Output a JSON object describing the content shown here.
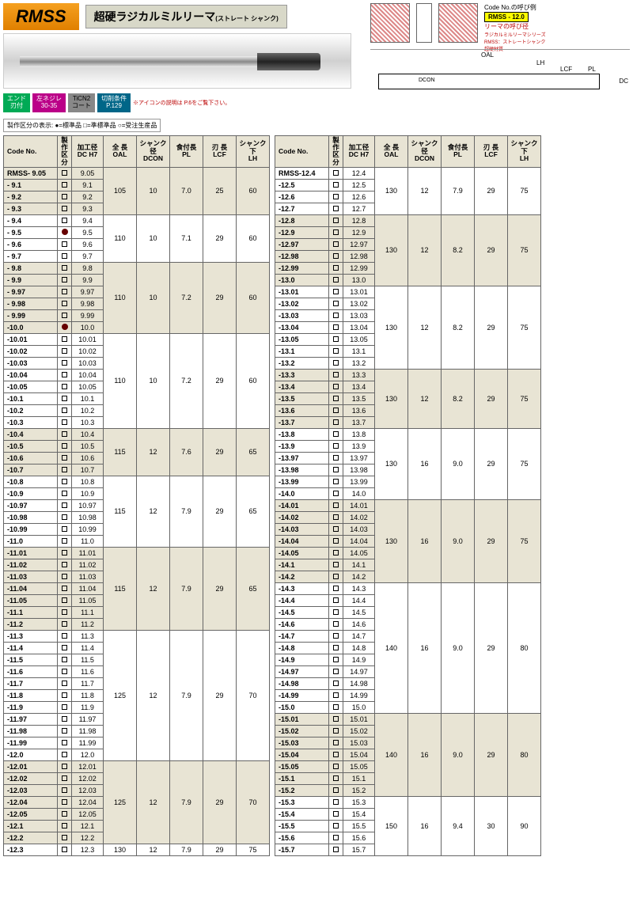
{
  "header": {
    "badge": "RMSS",
    "title": "超硬ラジカルミルリーマ",
    "subtitle": "(ストレート\nシャンク)",
    "badges": [
      {
        "line1": "エンド",
        "line2": "刃付",
        "cls": "b1"
      },
      {
        "line1": "左ネジレ",
        "line2": "30-35",
        "cls": "b2"
      },
      {
        "line1": "TiCN2",
        "line2": "コート",
        "cls": "b3"
      },
      {
        "line1": "切削条件",
        "line2": "P.129",
        "cls": "b4"
      }
    ],
    "badge_note": "※アイコンの説明は\nP.6をご覧下さい。",
    "code_example_label": "Code No.の呼び例",
    "code_example": "RMSS - 12.0",
    "code_example_note": "リーマの呼び径",
    "code_example_desc": "ラジカルミルリーマシリーズ\nRMSS：ストレートシャンク\n超硬材質",
    "dim_oal": "OAL",
    "dim_lh": "LH",
    "dim_lcf": "LCF",
    "dim_pl": "PL",
    "dim_dcon": "DCON",
    "dim_dc": "DC",
    "note": "製作区分の表示: ●=標準品 □=準標準品 ○=受注生産品"
  },
  "columns": [
    "Code No.",
    "製作\n区分",
    "加工径\nDC H7",
    "全 長\nOAL",
    "シャンク径\nDCON",
    "食付長\nPL",
    "刃 長\nLCF",
    "シャンク下\nLH"
  ],
  "left_groups": [
    {
      "rows": [
        [
          "RMSS- 9.05",
          "sq",
          "9.05"
        ],
        [
          "- 9.1",
          "sq",
          "9.1"
        ],
        [
          "- 9.2",
          "sq",
          "9.2"
        ],
        [
          "- 9.3",
          "sq",
          "9.3"
        ]
      ],
      "oal": "105",
      "dcon": "10",
      "pl": "7.0",
      "lcf": "25",
      "lh": "60",
      "alt": 1
    },
    {
      "rows": [
        [
          "- 9.4",
          "sq",
          "9.4"
        ],
        [
          "- 9.5",
          "dot",
          "9.5"
        ],
        [
          "- 9.6",
          "sq",
          "9.6"
        ],
        [
          "- 9.7",
          "sq",
          "9.7"
        ]
      ],
      "oal": "110",
      "dcon": "10",
      "pl": "7.1",
      "lcf": "29",
      "lh": "60",
      "alt": 0
    },
    {
      "rows": [
        [
          "- 9.8",
          "sq",
          "9.8"
        ],
        [
          "- 9.9",
          "sq",
          "9.9"
        ],
        [
          "- 9.97",
          "sq",
          "9.97"
        ],
        [
          "- 9.98",
          "sq",
          "9.98"
        ],
        [
          "- 9.99",
          "sq",
          "9.99"
        ],
        [
          "-10.0",
          "dot",
          "10.0"
        ]
      ],
      "oal": "110",
      "dcon": "10",
      "pl": "7.2",
      "lcf": "29",
      "lh": "60",
      "alt": 1
    },
    {
      "rows": [
        [
          "-10.01",
          "sq",
          "10.01"
        ],
        [
          "-10.02",
          "sq",
          "10.02"
        ],
        [
          "-10.03",
          "sq",
          "10.03"
        ],
        [
          "-10.04",
          "sq",
          "10.04"
        ],
        [
          "-10.05",
          "sq",
          "10.05"
        ],
        [
          "-10.1",
          "sq",
          "10.1"
        ],
        [
          "-10.2",
          "sq",
          "10.2"
        ],
        [
          "-10.3",
          "sq",
          "10.3"
        ]
      ],
      "oal": "110",
      "dcon": "10",
      "pl": "7.2",
      "lcf": "29",
      "lh": "60",
      "alt": 0
    },
    {
      "rows": [
        [
          "-10.4",
          "sq",
          "10.4"
        ],
        [
          "-10.5",
          "sq",
          "10.5"
        ],
        [
          "-10.6",
          "sq",
          "10.6"
        ],
        [
          "-10.7",
          "sq",
          "10.7"
        ]
      ],
      "oal": "115",
      "dcon": "12",
      "pl": "7.6",
      "lcf": "29",
      "lh": "65",
      "alt": 1
    },
    {
      "rows": [
        [
          "-10.8",
          "sq",
          "10.8"
        ],
        [
          "-10.9",
          "sq",
          "10.9"
        ],
        [
          "-10.97",
          "sq",
          "10.97"
        ],
        [
          "-10.98",
          "sq",
          "10.98"
        ],
        [
          "-10.99",
          "sq",
          "10.99"
        ],
        [
          "-11.0",
          "sq",
          "11.0"
        ]
      ],
      "oal": "115",
      "dcon": "12",
      "pl": "7.9",
      "lcf": "29",
      "lh": "65",
      "alt": 0
    },
    {
      "rows": [
        [
          "-11.01",
          "sq",
          "11.01"
        ],
        [
          "-11.02",
          "sq",
          "11.02"
        ],
        [
          "-11.03",
          "sq",
          "11.03"
        ],
        [
          "-11.04",
          "sq",
          "11.04"
        ],
        [
          "-11.05",
          "sq",
          "11.05"
        ],
        [
          "-11.1",
          "sq",
          "11.1"
        ],
        [
          "-11.2",
          "sq",
          "11.2"
        ]
      ],
      "oal": "115",
      "dcon": "12",
      "pl": "7.9",
      "lcf": "29",
      "lh": "65",
      "alt": 1
    },
    {
      "rows": [
        [
          "-11.3",
          "sq",
          "11.3"
        ],
        [
          "-11.4",
          "sq",
          "11.4"
        ],
        [
          "-11.5",
          "sq",
          "11.5"
        ],
        [
          "-11.6",
          "sq",
          "11.6"
        ],
        [
          "-11.7",
          "sq",
          "11.7"
        ],
        [
          "-11.8",
          "sq",
          "11.8"
        ],
        [
          "-11.9",
          "sq",
          "11.9"
        ],
        [
          "-11.97",
          "sq",
          "11.97"
        ],
        [
          "-11.98",
          "sq",
          "11.98"
        ],
        [
          "-11.99",
          "sq",
          "11.99"
        ],
        [
          "-12.0",
          "sq",
          "12.0"
        ]
      ],
      "oal": "125",
      "dcon": "12",
      "pl": "7.9",
      "lcf": "29",
      "lh": "70",
      "alt": 0
    },
    {
      "rows": [
        [
          "-12.01",
          "sq",
          "12.01"
        ],
        [
          "-12.02",
          "sq",
          "12.02"
        ],
        [
          "-12.03",
          "sq",
          "12.03"
        ],
        [
          "-12.04",
          "sq",
          "12.04"
        ],
        [
          "-12.05",
          "sq",
          "12.05"
        ],
        [
          "-12.1",
          "sq",
          "12.1"
        ],
        [
          "-12.2",
          "sq",
          "12.2"
        ]
      ],
      "oal": "125",
      "dcon": "12",
      "pl": "7.9",
      "lcf": "29",
      "lh": "70",
      "alt": 1
    },
    {
      "rows": [
        [
          "-12.3",
          "sq",
          "12.3"
        ]
      ],
      "oal": "130",
      "dcon": "12",
      "pl": "7.9",
      "lcf": "29",
      "lh": "75",
      "alt": 0
    }
  ],
  "right_groups": [
    {
      "rows": [
        [
          "RMSS-12.4",
          "sq",
          "12.4"
        ],
        [
          "-12.5",
          "sq",
          "12.5"
        ],
        [
          "-12.6",
          "sq",
          "12.6"
        ],
        [
          "-12.7",
          "sq",
          "12.7"
        ]
      ],
      "oal": "130",
      "dcon": "12",
      "pl": "7.9",
      "lcf": "29",
      "lh": "75",
      "alt": 0
    },
    {
      "rows": [
        [
          "-12.8",
          "sq",
          "12.8"
        ],
        [
          "-12.9",
          "sq",
          "12.9"
        ],
        [
          "-12.97",
          "sq",
          "12.97"
        ],
        [
          "-12.98",
          "sq",
          "12.98"
        ],
        [
          "-12.99",
          "sq",
          "12.99"
        ],
        [
          "-13.0",
          "sq",
          "13.0"
        ]
      ],
      "oal": "130",
      "dcon": "12",
      "pl": "8.2",
      "lcf": "29",
      "lh": "75",
      "alt": 1
    },
    {
      "rows": [
        [
          "-13.01",
          "sq",
          "13.01"
        ],
        [
          "-13.02",
          "sq",
          "13.02"
        ],
        [
          "-13.03",
          "sq",
          "13.03"
        ],
        [
          "-13.04",
          "sq",
          "13.04"
        ],
        [
          "-13.05",
          "sq",
          "13.05"
        ],
        [
          "-13.1",
          "sq",
          "13.1"
        ],
        [
          "-13.2",
          "sq",
          "13.2"
        ]
      ],
      "oal": "130",
      "dcon": "12",
      "pl": "8.2",
      "lcf": "29",
      "lh": "75",
      "alt": 0
    },
    {
      "rows": [
        [
          "-13.3",
          "sq",
          "13.3"
        ],
        [
          "-13.4",
          "sq",
          "13.4"
        ],
        [
          "-13.5",
          "sq",
          "13.5"
        ],
        [
          "-13.6",
          "sq",
          "13.6"
        ],
        [
          "-13.7",
          "sq",
          "13.7"
        ]
      ],
      "oal": "130",
      "dcon": "12",
      "pl": "8.2",
      "lcf": "29",
      "lh": "75",
      "alt": 1
    },
    {
      "rows": [
        [
          "-13.8",
          "sq",
          "13.8"
        ],
        [
          "-13.9",
          "sq",
          "13.9"
        ],
        [
          "-13.97",
          "sq",
          "13.97"
        ],
        [
          "-13.98",
          "sq",
          "13.98"
        ],
        [
          "-13.99",
          "sq",
          "13.99"
        ],
        [
          "-14.0",
          "sq",
          "14.0"
        ]
      ],
      "oal": "130",
      "dcon": "16",
      "pl": "9.0",
      "lcf": "29",
      "lh": "75",
      "alt": 0
    },
    {
      "rows": [
        [
          "-14.01",
          "sq",
          "14.01"
        ],
        [
          "-14.02",
          "sq",
          "14.02"
        ],
        [
          "-14.03",
          "sq",
          "14.03"
        ],
        [
          "-14.04",
          "sq",
          "14.04"
        ],
        [
          "-14.05",
          "sq",
          "14.05"
        ],
        [
          "-14.1",
          "sq",
          "14.1"
        ],
        [
          "-14.2",
          "sq",
          "14.2"
        ]
      ],
      "oal": "130",
      "dcon": "16",
      "pl": "9.0",
      "lcf": "29",
      "lh": "75",
      "alt": 1
    },
    {
      "rows": [
        [
          "-14.3",
          "sq",
          "14.3"
        ],
        [
          "-14.4",
          "sq",
          "14.4"
        ],
        [
          "-14.5",
          "sq",
          "14.5"
        ],
        [
          "-14.6",
          "sq",
          "14.6"
        ],
        [
          "-14.7",
          "sq",
          "14.7"
        ],
        [
          "-14.8",
          "sq",
          "14.8"
        ],
        [
          "-14.9",
          "sq",
          "14.9"
        ],
        [
          "-14.97",
          "sq",
          "14.97"
        ],
        [
          "-14.98",
          "sq",
          "14.98"
        ],
        [
          "-14.99",
          "sq",
          "14.99"
        ],
        [
          "-15.0",
          "sq",
          "15.0"
        ]
      ],
      "oal": "140",
      "dcon": "16",
      "pl": "9.0",
      "lcf": "29",
      "lh": "80",
      "alt": 0
    },
    {
      "rows": [
        [
          "-15.01",
          "sq",
          "15.01"
        ],
        [
          "-15.02",
          "sq",
          "15.02"
        ],
        [
          "-15.03",
          "sq",
          "15.03"
        ],
        [
          "-15.04",
          "sq",
          "15.04"
        ],
        [
          "-15.05",
          "sq",
          "15.05"
        ],
        [
          "-15.1",
          "sq",
          "15.1"
        ],
        [
          "-15.2",
          "sq",
          "15.2"
        ]
      ],
      "oal": "140",
      "dcon": "16",
      "pl": "9.0",
      "lcf": "29",
      "lh": "80",
      "alt": 1
    },
    {
      "rows": [
        [
          "-15.3",
          "sq",
          "15.3"
        ],
        [
          "-15.4",
          "sq",
          "15.4"
        ],
        [
          "-15.5",
          "sq",
          "15.5"
        ],
        [
          "-15.6",
          "sq",
          "15.6"
        ],
        [
          "-15.7",
          "sq",
          "15.7"
        ]
      ],
      "oal": "150",
      "dcon": "16",
      "pl": "9.4",
      "lcf": "30",
      "lh": "90",
      "alt": 0
    }
  ]
}
